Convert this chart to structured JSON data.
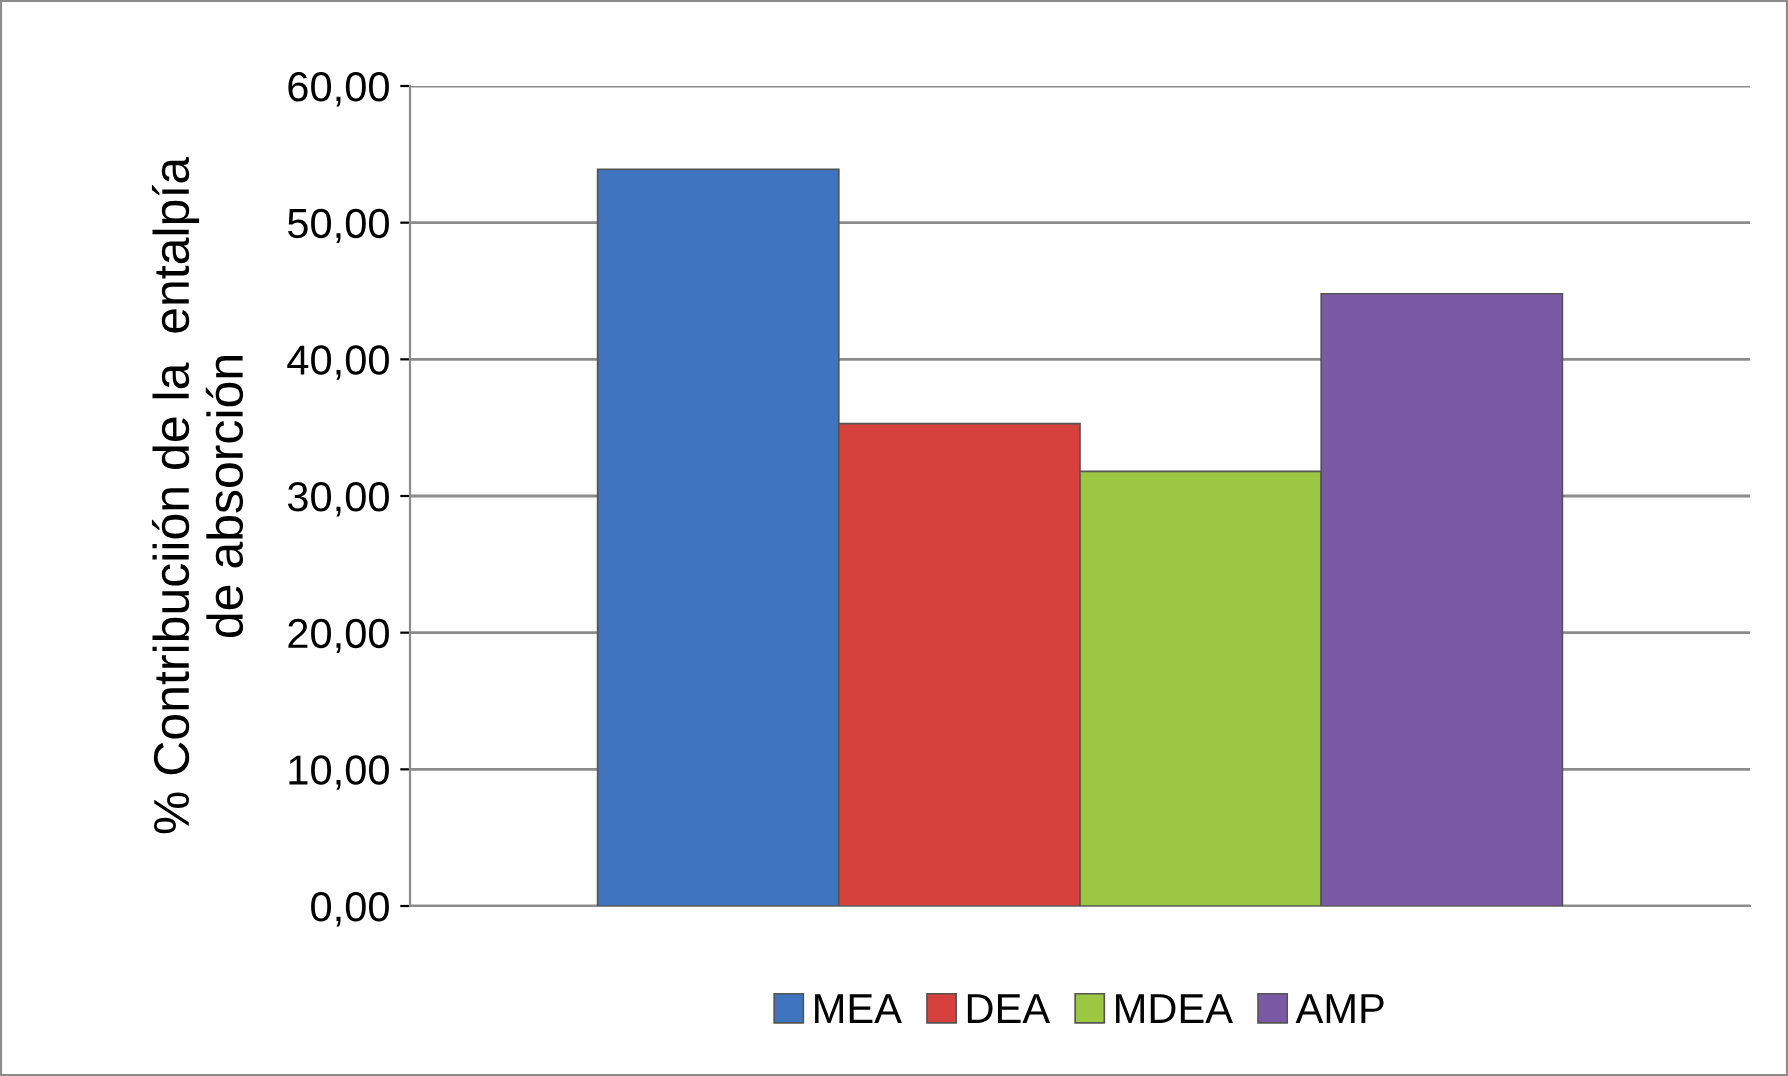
{
  "chart_data": {
    "type": "bar",
    "ylabel": "% Contribuciión de la  entalpía\nde absorción",
    "categories": [
      null
    ],
    "series": [
      {
        "name": "MEA",
        "color": "#3f74c0",
        "values": [
          53.9
        ]
      },
      {
        "name": "DEA",
        "color": "#d6403d",
        "values": [
          35.3
        ]
      },
      {
        "name": "MDEA",
        "color": "#9bc742",
        "values": [
          31.8
        ]
      },
      {
        "name": "AMP",
        "color": "#7a5aa6",
        "values": [
          44.8
        ]
      }
    ],
    "ylim": [
      0,
      60
    ],
    "yticks": [
      {
        "value": 0,
        "label": "0,00"
      },
      {
        "value": 10,
        "label": "10,00"
      },
      {
        "value": 20,
        "label": "20,00"
      },
      {
        "value": 30,
        "label": "30,00"
      },
      {
        "value": 40,
        "label": "40,00"
      },
      {
        "value": 50,
        "label": "50,00"
      },
      {
        "value": 60,
        "label": "60,00"
      }
    ],
    "grid": "y",
    "legend": "bottom"
  }
}
